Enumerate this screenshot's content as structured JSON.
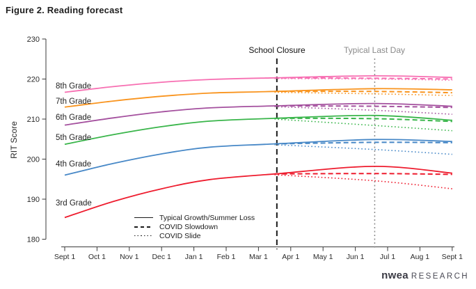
{
  "figure_title": "Figure 2. Reading forecast",
  "logo": {
    "brand": "nwea",
    "suffix": "RESEARCH"
  },
  "chart_data": {
    "type": "line",
    "title": "Figure 2. Reading forecast",
    "xlabel": "",
    "ylabel": "RIT Score",
    "ylim": [
      180,
      230
    ],
    "yticks": [
      180,
      190,
      200,
      210,
      220,
      230
    ],
    "x_tick_labels": [
      "Sept 1",
      "Oct 1",
      "Nov 1",
      "Dec 1",
      "Jan 1",
      "Feb 1",
      "Mar 1",
      "Apr 1",
      "May 1",
      "Jun 1",
      "Jul 1",
      "Aug 1",
      "Sept 1"
    ],
    "x_months": [
      0,
      1,
      2,
      3,
      4,
      5,
      6,
      7,
      8,
      9,
      10,
      11,
      12
    ],
    "grid": false,
    "legend_position": "bottom-left-inside",
    "annotations": [
      {
        "label": "School Closure",
        "x_month": 6.57,
        "line_style": "dashed",
        "color": "#1a1a1a"
      },
      {
        "label": "Typical Last Day",
        "x_month": 9.6,
        "line_style": "dotted",
        "color": "#8a8a8a"
      }
    ],
    "legend": [
      {
        "label": "Typical Growth/Summer Loss",
        "line_style": "solid"
      },
      {
        "label": "COVID Slowdown",
        "line_style": "dashed"
      },
      {
        "label": "COVID Slide",
        "line_style": "dotted"
      }
    ],
    "series": [
      {
        "grade": "8th Grade",
        "color": "#F76FB2",
        "typical": [
          [
            0,
            216.7
          ],
          [
            1.5,
            218.1
          ],
          [
            3,
            219.2
          ],
          [
            4.5,
            219.9
          ],
          [
            6.5,
            220.3
          ],
          [
            9.6,
            220.8
          ],
          [
            12,
            220.4
          ]
        ],
        "covid_slowdown": [
          [
            6.5,
            220.3
          ],
          [
            9.6,
            220.2
          ],
          [
            12,
            220.0
          ]
        ],
        "covid_slide": [
          [
            6.5,
            220.1
          ],
          [
            9.6,
            220.0
          ],
          [
            12,
            219.7
          ]
        ]
      },
      {
        "grade": "7th Grade",
        "color": "#F9941E",
        "typical": [
          [
            0,
            213.0
          ],
          [
            1.5,
            214.5
          ],
          [
            3,
            215.7
          ],
          [
            4.5,
            216.5
          ],
          [
            6.5,
            216.9
          ],
          [
            9.6,
            217.6
          ],
          [
            12,
            217.3
          ]
        ],
        "covid_slowdown": [
          [
            6.5,
            216.9
          ],
          [
            9.6,
            216.9
          ],
          [
            12,
            216.6
          ]
        ],
        "covid_slide": [
          [
            6.5,
            216.7
          ],
          [
            9.6,
            216.3
          ],
          [
            12,
            215.9
          ]
        ]
      },
      {
        "grade": "6th Grade",
        "color": "#A4509E",
        "typical": [
          [
            0,
            208.5
          ],
          [
            1.5,
            210.3
          ],
          [
            3,
            211.8
          ],
          [
            4.5,
            212.8
          ],
          [
            6.5,
            213.3
          ],
          [
            9.6,
            213.9
          ],
          [
            12,
            213.2
          ]
        ],
        "covid_slowdown": [
          [
            6.5,
            213.3
          ],
          [
            9.6,
            213.2
          ],
          [
            12,
            212.9
          ]
        ],
        "covid_slide": [
          [
            6.5,
            213.1
          ],
          [
            9.6,
            212.2
          ],
          [
            12,
            211.2
          ]
        ]
      },
      {
        "grade": "5th Grade",
        "color": "#39B54A",
        "typical": [
          [
            0,
            203.7
          ],
          [
            1.5,
            206.1
          ],
          [
            3,
            208.1
          ],
          [
            4.5,
            209.5
          ],
          [
            6.5,
            210.2
          ],
          [
            9.6,
            210.9
          ],
          [
            12,
            209.7
          ]
        ],
        "covid_slowdown": [
          [
            6.5,
            210.2
          ],
          [
            9.6,
            210.1
          ],
          [
            12,
            209.4
          ]
        ],
        "covid_slide": [
          [
            6.5,
            210.0
          ],
          [
            9.6,
            208.4
          ],
          [
            12,
            207.1
          ]
        ]
      },
      {
        "grade": "4th Grade",
        "color": "#4788C7",
        "typical": [
          [
            0,
            196.0
          ],
          [
            1.5,
            198.9
          ],
          [
            3,
            201.3
          ],
          [
            4.5,
            203.0
          ],
          [
            6.5,
            203.8
          ],
          [
            9.6,
            204.9
          ],
          [
            12,
            204.4
          ]
        ],
        "covid_slowdown": [
          [
            6.5,
            203.8
          ],
          [
            9.6,
            204.2
          ],
          [
            12,
            204.1
          ]
        ],
        "covid_slide": [
          [
            6.5,
            203.6
          ],
          [
            9.6,
            202.4
          ],
          [
            12,
            201.2
          ]
        ]
      },
      {
        "grade": "3rd Grade",
        "color": "#EE1C2E",
        "typical": [
          [
            0,
            185.4
          ],
          [
            1.5,
            189.4
          ],
          [
            3,
            192.6
          ],
          [
            4.5,
            194.9
          ],
          [
            6.5,
            196.3
          ],
          [
            9.6,
            198.2
          ],
          [
            12,
            196.5
          ]
        ],
        "covid_slowdown": [
          [
            6.5,
            196.3
          ],
          [
            9.6,
            196.4
          ],
          [
            12,
            196.2
          ]
        ],
        "covid_slide": [
          [
            6.5,
            196.1
          ],
          [
            9.6,
            194.6
          ],
          [
            12,
            192.6
          ]
        ]
      }
    ]
  }
}
